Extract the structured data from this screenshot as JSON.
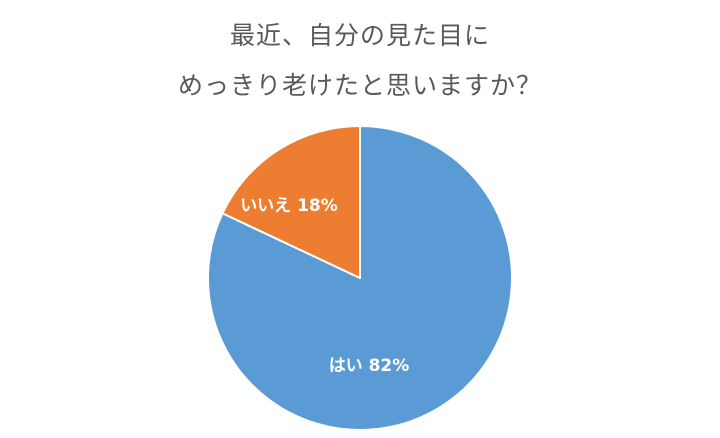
{
  "chart_data": {
    "type": "pie",
    "title_lines": [
      "最近、自分の見た目に",
      "めっきり老けたと思いますか？"
    ],
    "slices": [
      {
        "label": "はい",
        "value": 82,
        "display": "はい 82%",
        "color": "#5B9BD5"
      },
      {
        "label": "いいえ",
        "value": 18,
        "display": "いいえ 18%",
        "color": "#ED7D31"
      }
    ],
    "unit": "%",
    "start_angle": "top, clockwise",
    "legend": "none",
    "slice_border_color": "#ffffff"
  }
}
